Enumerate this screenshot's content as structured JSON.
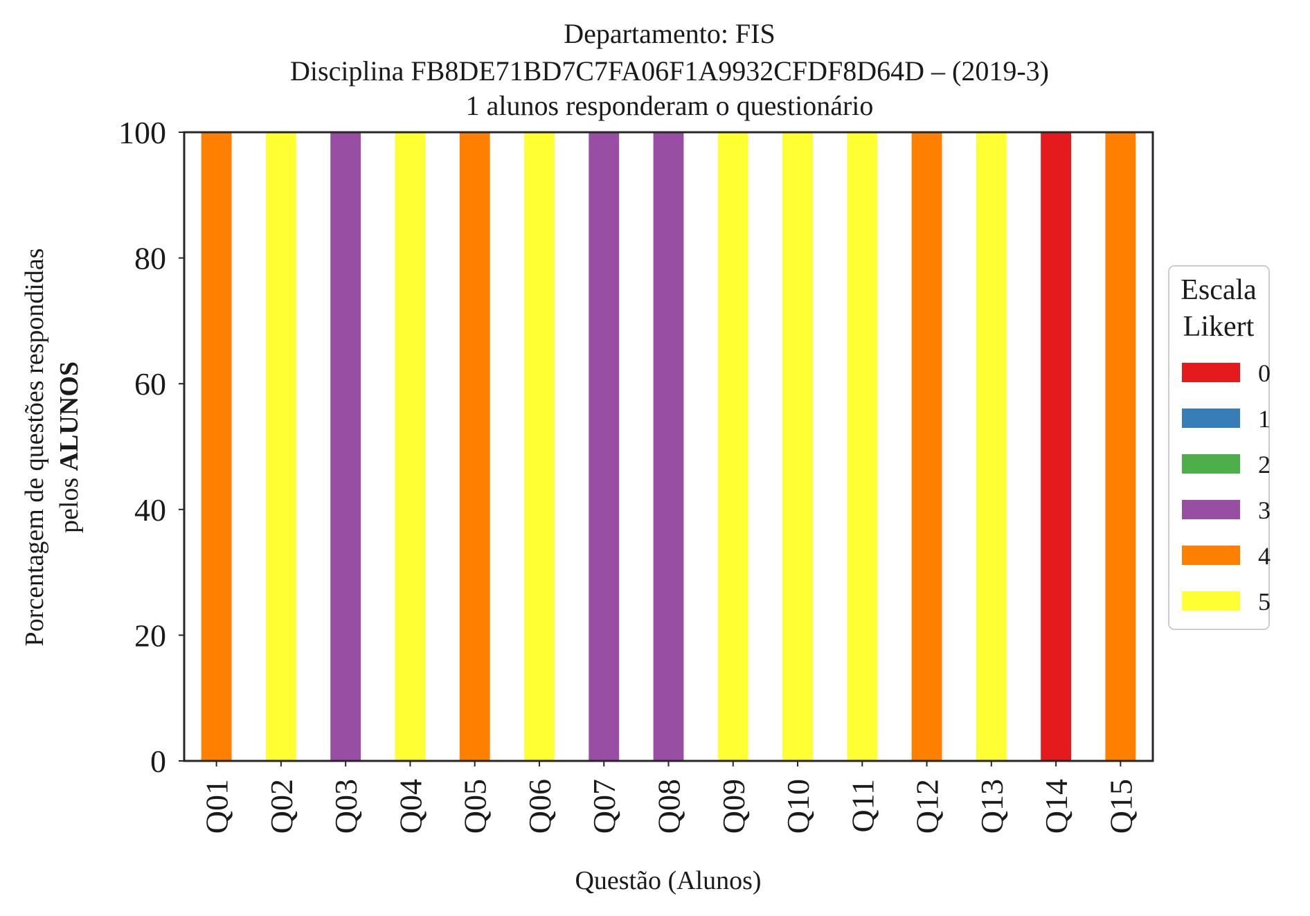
{
  "chart_data": {
    "type": "bar",
    "stacked": true,
    "title_lines": [
      "Departamento: FIS",
      "Disciplina FB8DE71BD7C7FA06F1A9932CFDF8D64D – (2019-3)",
      "1 alunos responderam o questionário"
    ],
    "xlabel": "Questão (Alunos)",
    "ylabel_line1": "Porcentagem de questões respondidas",
    "ylabel_line2_prefix": "pelos ",
    "ylabel_line2_bold": "ALUNOS",
    "ylim": [
      0,
      100
    ],
    "yticks": [
      "0",
      "20",
      "40",
      "60",
      "80",
      "100"
    ],
    "grid": false,
    "categories": [
      "Q01",
      "Q02",
      "Q03",
      "Q04",
      "Q05",
      "Q06",
      "Q07",
      "Q08",
      "Q09",
      "Q10",
      "Q11",
      "Q12",
      "Q13",
      "Q14",
      "Q15"
    ],
    "series": [
      {
        "name": "0",
        "color": "#e41a1c",
        "values": [
          0,
          0,
          0,
          0,
          0,
          0,
          0,
          0,
          0,
          0,
          0,
          0,
          0,
          100,
          0
        ]
      },
      {
        "name": "1",
        "color": "#377eb8",
        "values": [
          0,
          0,
          0,
          0,
          0,
          0,
          0,
          0,
          0,
          0,
          0,
          0,
          0,
          0,
          0
        ]
      },
      {
        "name": "2",
        "color": "#4daf4a",
        "values": [
          0,
          0,
          0,
          0,
          0,
          0,
          0,
          0,
          0,
          0,
          0,
          0,
          0,
          0,
          0
        ]
      },
      {
        "name": "3",
        "color": "#984ea3",
        "values": [
          0,
          0,
          100,
          0,
          0,
          0,
          100,
          100,
          0,
          0,
          0,
          0,
          0,
          0,
          0
        ]
      },
      {
        "name": "4",
        "color": "#ff7f00",
        "values": [
          100,
          0,
          0,
          0,
          100,
          0,
          0,
          0,
          0,
          0,
          0,
          100,
          0,
          0,
          100
        ]
      },
      {
        "name": "5",
        "color": "#ffff33",
        "values": [
          0,
          100,
          0,
          100,
          0,
          100,
          0,
          0,
          100,
          100,
          100,
          0,
          100,
          0,
          0
        ]
      }
    ],
    "legend": {
      "title_lines": [
        "Escala",
        "Likert"
      ],
      "placement": "center-right outside"
    }
  }
}
